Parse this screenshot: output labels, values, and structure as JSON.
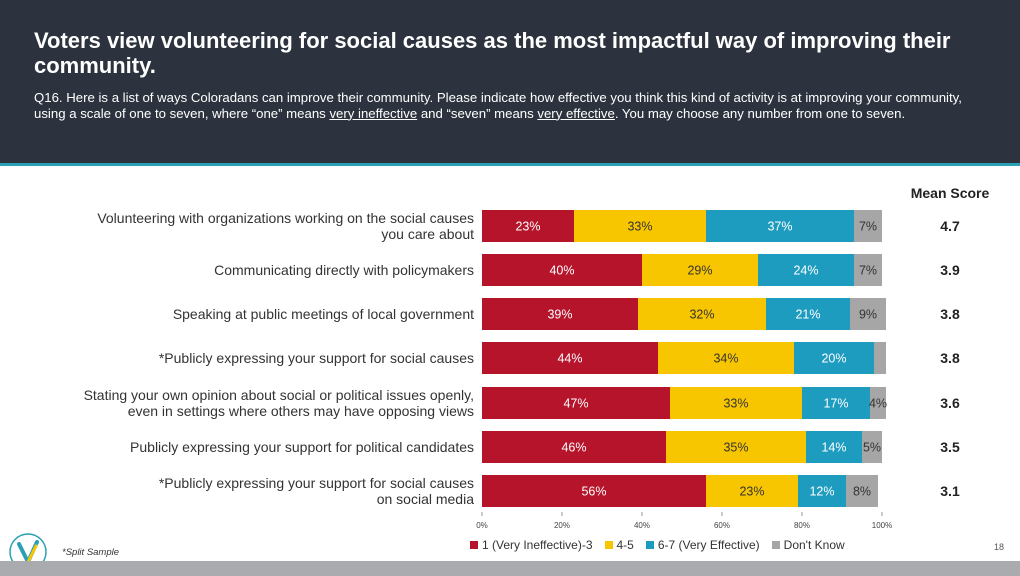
{
  "header": {
    "title": "Voters view volunteering for social causes as the most impactful way of improving their community.",
    "question_prefix": "Q16. Here is a list of ways Coloradans can improve their community. Please indicate how effective you think this kind of activity is at improving your community, using a scale of one to seven, where “one” means ",
    "question_u1": "very ineffective",
    "question_mid": " and “seven” means ",
    "question_u2": "very effective",
    "question_suffix": ". You may choose any number from one to seven."
  },
  "mean_header": "Mean Score",
  "footnote": "*Split Sample",
  "page_number": "18",
  "colors": {
    "ineffective": "#b5142b",
    "mid": "#f7c600",
    "effective": "#1e9cc0",
    "dont_know": "#a6a6a6",
    "header_bg": "#2c333e",
    "accent": "#2b9fb5"
  },
  "chart_data": {
    "type": "bar",
    "orientation": "horizontal-stacked-100",
    "xlim": [
      0,
      100
    ],
    "x_ticks": [
      "0%",
      "20%",
      "40%",
      "60%",
      "80%",
      "100%"
    ],
    "legend": [
      "1 (Very Ineffective)-3",
      "4-5",
      "6-7 (Very Effective)",
      "Don't Know"
    ],
    "legend_position": "bottom",
    "categories": [
      [
        "Volunteering with organizations working on the social causes",
        "you care about"
      ],
      [
        "Communicating directly with policymakers"
      ],
      [
        "Speaking at public meetings of local government"
      ],
      [
        "*Publicly expressing your support for social causes"
      ],
      [
        "Stating your own opinion about social or political issues openly,",
        "even in settings where others may have opposing views"
      ],
      [
        "Publicly expressing your support for political candidates"
      ],
      [
        "*Publicly expressing your support for social causes",
        "on social media"
      ]
    ],
    "series": [
      {
        "name": "1 (Very Ineffective)-3",
        "values": [
          23,
          40,
          39,
          44,
          47,
          46,
          56
        ],
        "labels": [
          "23%",
          "40%",
          "39%",
          "44%",
          "47%",
          "46%",
          "56%"
        ]
      },
      {
        "name": "4-5",
        "values": [
          33,
          29,
          32,
          34,
          33,
          35,
          23
        ],
        "labels": [
          "33%",
          "29%",
          "32%",
          "34%",
          "33%",
          "35%",
          "23%"
        ]
      },
      {
        "name": "6-7 (Very Effective)",
        "values": [
          37,
          24,
          21,
          20,
          17,
          14,
          12
        ],
        "labels": [
          "37%",
          "24%",
          "21%",
          "20%",
          "17%",
          "14%",
          "12%"
        ]
      },
      {
        "name": "Don't Know",
        "values": [
          7,
          7,
          9,
          3,
          4,
          5,
          8
        ],
        "labels": [
          "7%",
          "7%",
          "9%",
          "",
          "4%",
          "5%",
          "8%"
        ]
      }
    ],
    "mean_scores": [
      "4.7",
      "3.9",
      "3.8",
      "3.8",
      "3.6",
      "3.5",
      "3.1"
    ]
  }
}
